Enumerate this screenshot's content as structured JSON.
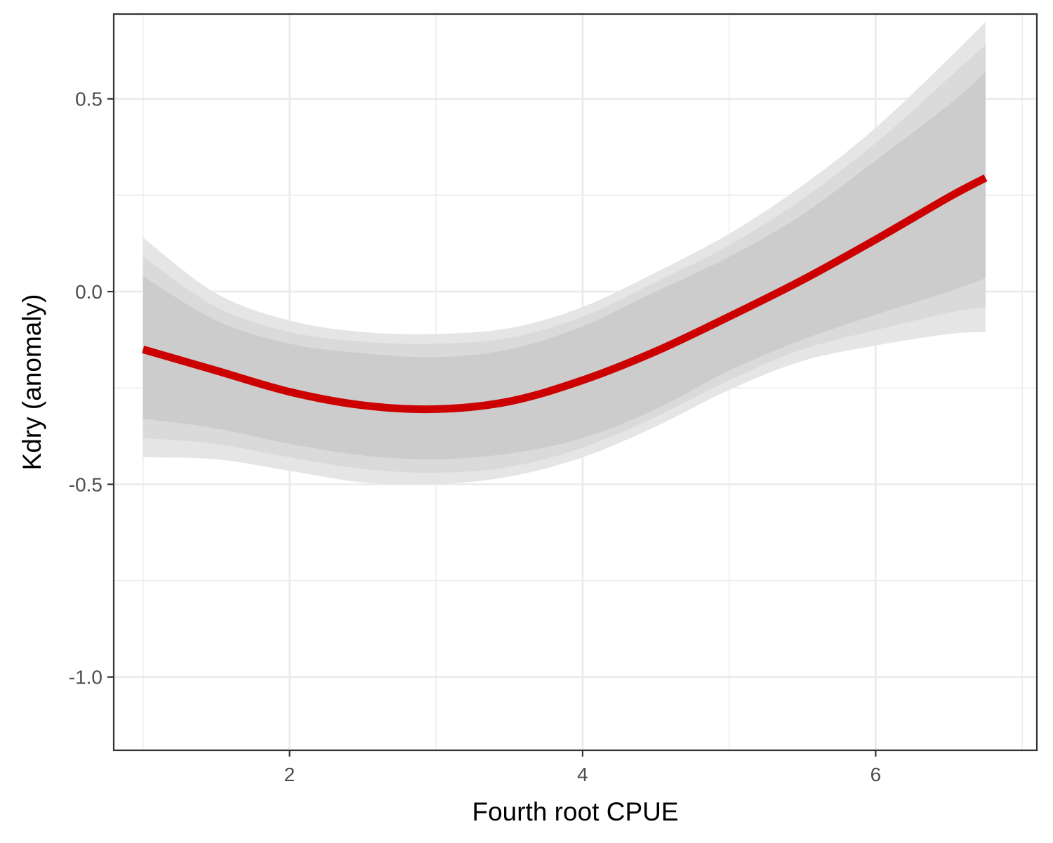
{
  "chart_data": {
    "type": "line",
    "xlabel": "Fourth root CPUE",
    "ylabel": "Kdry (anomaly)",
    "xlim": [
      0.8,
      7.1
    ],
    "ylim": [
      -1.19,
      0.72
    ],
    "x_ticks": [
      2,
      4,
      6
    ],
    "x_tick_labels": [
      "2",
      "4",
      "6"
    ],
    "y_ticks": [
      -1.0,
      -0.5,
      0.0,
      0.5
    ],
    "y_tick_labels": [
      "-1.0",
      "-0.5",
      "0.0",
      "0.5"
    ],
    "x_minor_ticks": [
      1,
      3,
      5,
      7
    ],
    "y_minor_ticks": [
      -0.75,
      -0.25,
      0.25
    ],
    "grid": true,
    "legend": "none",
    "series": [
      {
        "x": [
          1.0,
          1.5,
          2.0,
          2.5,
          3.0,
          3.5,
          4.0,
          4.5,
          5.0,
          5.5,
          6.0,
          6.5,
          6.75
        ],
        "y": [
          -0.15,
          -0.205,
          -0.26,
          -0.295,
          -0.305,
          -0.285,
          -0.23,
          -0.155,
          -0.065,
          0.03,
          0.135,
          0.245,
          0.295
        ],
        "color": "#cc0000"
      }
    ],
    "ribbons": [
      {
        "level": "outer",
        "color": "#e5e5e5",
        "x": [
          1.0,
          1.5,
          2.0,
          2.5,
          3.0,
          3.5,
          4.0,
          4.5,
          5.0,
          5.5,
          6.0,
          6.5,
          6.75
        ],
        "lower": [
          -0.43,
          -0.435,
          -0.465,
          -0.495,
          -0.5,
          -0.48,
          -0.43,
          -0.35,
          -0.255,
          -0.18,
          -0.14,
          -0.11,
          -0.105
        ],
        "upper": [
          0.14,
          -0.005,
          -0.075,
          -0.105,
          -0.11,
          -0.095,
          -0.04,
          0.05,
          0.15,
          0.275,
          0.425,
          0.605,
          0.7
        ]
      },
      {
        "level": "middle",
        "color": "#dadada",
        "x": [
          1.0,
          1.5,
          2.0,
          2.5,
          3.0,
          3.5,
          4.0,
          4.5,
          5.0,
          5.5,
          6.0,
          6.5,
          6.75
        ],
        "lower": [
          -0.38,
          -0.395,
          -0.43,
          -0.46,
          -0.47,
          -0.455,
          -0.405,
          -0.325,
          -0.23,
          -0.15,
          -0.1,
          -0.055,
          -0.04
        ],
        "upper": [
          0.09,
          -0.04,
          -0.105,
          -0.13,
          -0.135,
          -0.12,
          -0.065,
          0.025,
          0.12,
          0.24,
          0.385,
          0.555,
          0.64
        ]
      },
      {
        "level": "inner",
        "color": "#cccccc",
        "x": [
          1.0,
          1.5,
          2.0,
          2.5,
          3.0,
          3.5,
          4.0,
          4.5,
          5.0,
          5.5,
          6.0,
          6.5,
          6.75
        ],
        "lower": [
          -0.33,
          -0.355,
          -0.395,
          -0.425,
          -0.435,
          -0.42,
          -0.38,
          -0.305,
          -0.205,
          -0.125,
          -0.06,
          0.0,
          0.035
        ],
        "upper": [
          0.04,
          -0.075,
          -0.135,
          -0.16,
          -0.17,
          -0.15,
          -0.09,
          0.0,
          0.09,
          0.2,
          0.34,
          0.485,
          0.57
        ]
      }
    ]
  }
}
